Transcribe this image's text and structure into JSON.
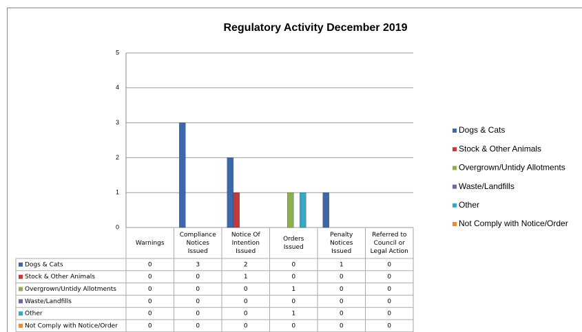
{
  "chart_data": {
    "type": "bar",
    "title": "Regulatory Activity December 2019",
    "categories": [
      "Warnings",
      "Compliance Notices Issued",
      "Notice Of Intention Issued",
      "Orders Issued",
      "Penalty Notices Issued",
      "Referred to Council or Legal Action"
    ],
    "series": [
      {
        "name": "Dogs & Cats",
        "color": "#3c68aa",
        "values": [
          0,
          3,
          2,
          0,
          1,
          0
        ]
      },
      {
        "name": "Stock & Other Animals",
        "color": "#c0393b",
        "values": [
          0,
          0,
          1,
          0,
          0,
          0
        ]
      },
      {
        "name": "Overgrown/Untidy Allotments",
        "color": "#8cb04a",
        "values": [
          0,
          0,
          0,
          1,
          0,
          0
        ]
      },
      {
        "name": "Waste/Landfills",
        "color": "#7a5ea4",
        "values": [
          0,
          0,
          0,
          0,
          0,
          0
        ]
      },
      {
        "name": "Other",
        "color": "#38a7c4",
        "values": [
          0,
          0,
          0,
          1,
          0,
          0
        ]
      },
      {
        "name": "Not Comply with Notice/Order",
        "color": "#ec8a35",
        "values": [
          0,
          0,
          0,
          0,
          0,
          0
        ]
      }
    ],
    "ylim": [
      0,
      5
    ],
    "yticks": [
      0,
      1,
      2,
      3,
      4,
      5
    ],
    "grid": true,
    "legend": "right"
  }
}
